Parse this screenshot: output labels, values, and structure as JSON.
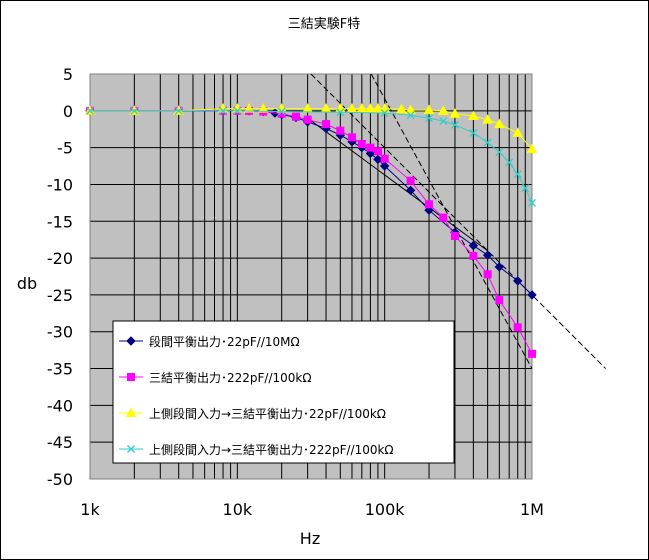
{
  "chart_data": {
    "type": "line",
    "title": "三結実験F特",
    "xlabel": "Hz",
    "ylabel": "db",
    "xscale": "log",
    "xlim": [
      1000,
      1000000
    ],
    "ylim": [
      -50,
      5
    ],
    "x_ticks": [
      {
        "value": 1000,
        "label": "1k"
      },
      {
        "value": 10000,
        "label": "10k"
      },
      {
        "value": 100000,
        "label": "100k"
      },
      {
        "value": 1000000,
        "label": "1M"
      }
    ],
    "y_ticks": [
      5,
      0,
      -5,
      -10,
      -15,
      -20,
      -25,
      -30,
      -35,
      -40,
      -45,
      -50
    ],
    "grid": true,
    "legend_position": "bottom-left",
    "series": [
      {
        "name": "段間平衡出力･22pF//10MΩ",
        "color": "#000080",
        "marker": "diamond",
        "x": [
          1000,
          2000,
          4000,
          8000,
          10000,
          12000,
          15000,
          18000,
          20000,
          25000,
          30000,
          40000,
          50000,
          60000,
          70000,
          80000,
          90000,
          100000,
          150000,
          200000,
          300000,
          400000,
          500000,
          600000,
          800000,
          1000000
        ],
        "y": [
          0,
          0,
          0,
          0,
          0,
          0,
          -0.1,
          -0.3,
          -0.5,
          -0.9,
          -1.5,
          -2.4,
          -3.3,
          -4.2,
          -5.0,
          -5.8,
          -6.6,
          -7.5,
          -10.8,
          -13.5,
          -16.5,
          -18.3,
          -19.6,
          -21.2,
          -23.1,
          -25.0
        ]
      },
      {
        "name": "三結平衡出力･222pF//100kΩ",
        "color": "#ff00ff",
        "marker": "square",
        "x": [
          1000,
          2000,
          4000,
          8000,
          10000,
          12000,
          15000,
          20000,
          25000,
          30000,
          40000,
          50000,
          60000,
          70000,
          80000,
          90000,
          100000,
          150000,
          200000,
          250000,
          300000,
          400000,
          500000,
          600000,
          800000,
          1000000
        ],
        "y": [
          0,
          0,
          0,
          0,
          0,
          0,
          -0.1,
          -0.4,
          -0.8,
          -1.2,
          -1.8,
          -2.7,
          -3.6,
          -4.5,
          -5.0,
          -5.5,
          -6.5,
          -9.5,
          -12.7,
          -14.5,
          -17.0,
          -19.7,
          -22.2,
          -25.7,
          -29.4,
          -33.0
        ]
      },
      {
        "name": "上側段間入力→三結平衡出力･22pF//100kΩ",
        "color": "#ffff00",
        "marker": "triangle",
        "x": [
          1000,
          2000,
          4000,
          8000,
          10000,
          12000,
          15000,
          20000,
          30000,
          40000,
          50000,
          60000,
          70000,
          80000,
          90000,
          100000,
          130000,
          150000,
          200000,
          250000,
          300000,
          400000,
          500000,
          600000,
          800000,
          1000000
        ],
        "y": [
          0,
          0,
          0,
          0.3,
          0.3,
          0.3,
          0.3,
          0.3,
          0.3,
          0.3,
          0.3,
          0.3,
          0.3,
          0.3,
          0.3,
          0.3,
          0.2,
          0.1,
          0.1,
          0,
          -0.4,
          -0.7,
          -1.2,
          -1.8,
          -3.0,
          -5.2
        ]
      },
      {
        "name": "上側段間入力→三結平衡出力･222pF//100kΩ",
        "color": "#33cccc",
        "marker": "x",
        "x": [
          1000,
          2000,
          4000,
          8000,
          10000,
          20000,
          50000,
          100000,
          150000,
          200000,
          250000,
          300000,
          400000,
          500000,
          600000,
          700000,
          800000,
          900000,
          1000000
        ],
        "y": [
          0,
          0,
          0,
          0,
          0,
          -0.1,
          -0.2,
          -0.3,
          -0.6,
          -1.0,
          -1.4,
          -1.9,
          -3.0,
          -4.3,
          -5.6,
          -7.0,
          -8.6,
          -10.5,
          -12.5
        ]
      }
    ],
    "guide_lines": [
      {
        "color": "#000000",
        "style": "dashed",
        "x": [
          31600,
          3160000
        ],
        "y": [
          5,
          -35
        ]
      },
      {
        "color": "#000000",
        "style": "dashed",
        "x": [
          81000,
          1000000
        ],
        "y": [
          5,
          -35
        ]
      },
      {
        "color": "#000000",
        "style": "solid",
        "x": [
          30000,
          500000
        ],
        "y": [
          -1,
          -19
        ]
      }
    ]
  }
}
